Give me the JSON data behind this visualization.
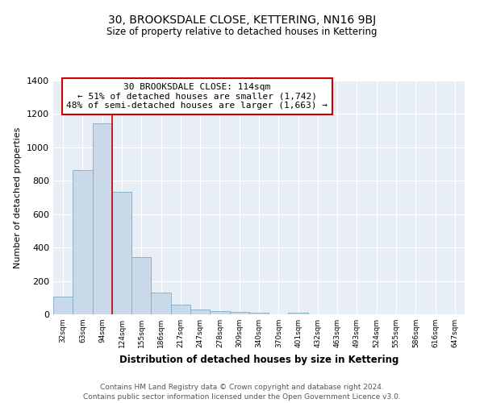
{
  "title": "30, BROOKSDALE CLOSE, KETTERING, NN16 9BJ",
  "subtitle": "Size of property relative to detached houses in Kettering",
  "xlabel": "Distribution of detached houses by size in Kettering",
  "ylabel": "Number of detached properties",
  "bar_labels": [
    "32sqm",
    "63sqm",
    "94sqm",
    "124sqm",
    "155sqm",
    "186sqm",
    "217sqm",
    "247sqm",
    "278sqm",
    "309sqm",
    "340sqm",
    "370sqm",
    "401sqm",
    "432sqm",
    "463sqm",
    "493sqm",
    "524sqm",
    "555sqm",
    "586sqm",
    "616sqm",
    "647sqm"
  ],
  "bar_values": [
    105,
    865,
    1145,
    735,
    345,
    130,
    60,
    30,
    20,
    15,
    10,
    0,
    10,
    0,
    0,
    0,
    0,
    0,
    0,
    0,
    0
  ],
  "bar_color": "#c9d9ea",
  "bar_edge_color": "#7aaac8",
  "plot_bg_color": "#e8eef5",
  "fig_bg_color": "#ffffff",
  "grid_color": "#ffffff",
  "vline_x_idx": 2,
  "vline_color": "#cc0000",
  "annotation_title": "30 BROOKSDALE CLOSE: 114sqm",
  "annotation_line1": "← 51% of detached houses are smaller (1,742)",
  "annotation_line2": "48% of semi-detached houses are larger (1,663) →",
  "annotation_box_color": "#ffffff",
  "annotation_border_color": "#cc0000",
  "ylim": [
    0,
    1400
  ],
  "yticks": [
    0,
    200,
    400,
    600,
    800,
    1000,
    1200,
    1400
  ],
  "footer1": "Contains HM Land Registry data © Crown copyright and database right 2024.",
  "footer2": "Contains public sector information licensed under the Open Government Licence v3.0."
}
